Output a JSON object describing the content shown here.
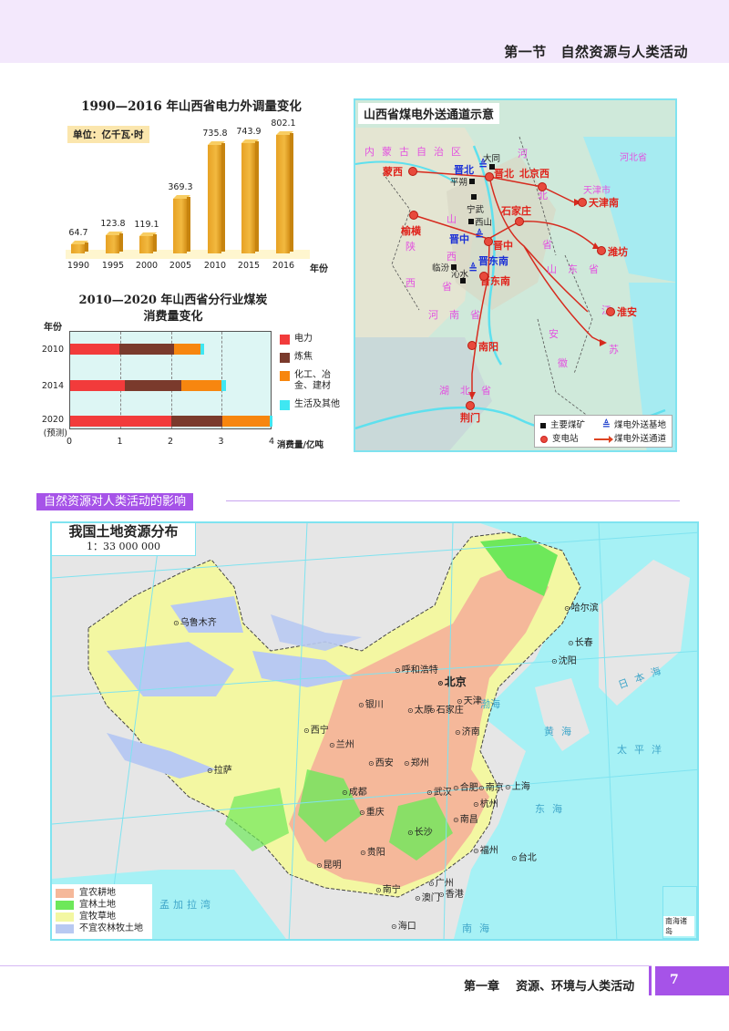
{
  "header": {
    "section_number": "第一节",
    "section_title": "自然资源与人类活动"
  },
  "chart_data": [
    {
      "type": "bar",
      "title": "1990—2016 年山西省电力外调量变化",
      "unit_label": "单位：亿千瓦·时",
      "xlabel": "年份",
      "ylabel": "",
      "categories": [
        "1990",
        "1995",
        "2000",
        "2005",
        "2010",
        "2015",
        "2016"
      ],
      "values": [
        64.7,
        123.8,
        119.1,
        369.3,
        735.8,
        743.9,
        802.1
      ],
      "value_labels": [
        "64.7",
        "123.8",
        "119.1",
        "369.3",
        "735.8",
        "743.9",
        "802.1"
      ],
      "ylim": [
        0,
        850
      ],
      "grid": false,
      "legend": null
    },
    {
      "type": "bar",
      "orientation": "horizontal-stacked",
      "title": "2010—2020 年山西省分行业煤炭消费量变化",
      "title_lines": [
        "2010—2020 年山西省分行业煤炭",
        "消费量变化"
      ],
      "ylabel": "年份",
      "xlabel": "消费量/亿吨",
      "categories": [
        "2010",
        "2014",
        "2020"
      ],
      "category_notes": [
        "",
        "",
        "(预测)"
      ],
      "xticks": [
        "0",
        "1",
        "2",
        "3",
        "4"
      ],
      "xlim": [
        0,
        4
      ],
      "grid": "vertical dashed at 1,2,3",
      "legend_position": "right",
      "series": [
        {
          "name": "电力",
          "color": "#f23b3b",
          "values": [
            0.97,
            1.08,
            2.0
          ]
        },
        {
          "name": "炼焦",
          "color": "#7a3a2c",
          "values": [
            1.09,
            1.12,
            1.0
          ]
        },
        {
          "name": "化工、冶金、建材",
          "color": "#f7860f",
          "values": [
            0.52,
            0.8,
            0.95
          ]
        },
        {
          "name": "生活及其他",
          "color": "#3fe7f2",
          "values": [
            0.07,
            0.08,
            0.05
          ]
        }
      ]
    }
  ],
  "map_shanxi": {
    "title": "山西省煤电外送通道示意",
    "regions": [
      "内蒙古自治区",
      "河北省",
      "山西省",
      "陕西省",
      "山东省",
      "河南省",
      "江苏省",
      "安徽省",
      "湖北省",
      "天津市",
      "渤海",
      "黄海"
    ],
    "stations": [
      "蒙西",
      "晋北",
      "北京西",
      "天津南",
      "石家庄",
      "榆横",
      "晋中",
      "潍坊",
      "晋东南",
      "南阳",
      "淮安",
      "荆门"
    ],
    "bases": [
      "晋北",
      "晋中",
      "晋东南"
    ],
    "mines": [
      "大同",
      "平朔",
      "宁武",
      "西山",
      "临汾",
      "沁水"
    ],
    "legend": {
      "mine": "主要煤矿",
      "base": "煤电外送基地",
      "station": "变电站",
      "channel": "煤电外送通道"
    }
  },
  "section_heading": "自然资源对人类活动的影响",
  "map_china": {
    "title": "我国土地资源分布",
    "scale": "1：33 000 000",
    "cities": [
      "乌鲁木齐",
      "哈尔滨",
      "长春",
      "沈阳",
      "呼和浩特",
      "北京",
      "天津",
      "银川",
      "太原",
      "石家庄",
      "济南",
      "西宁",
      "兰州",
      "西安",
      "郑州",
      "拉萨",
      "成都",
      "武汉",
      "合肥",
      "南京",
      "上海",
      "杭州",
      "重庆",
      "南昌",
      "长沙",
      "福州",
      "贵阳",
      "台北",
      "昆明",
      "广州",
      "南宁",
      "澳门",
      "香港",
      "海口"
    ],
    "seas": [
      "日本海",
      "渤海",
      "黄海",
      "东海",
      "太平洋",
      "南海",
      "孟加拉湾"
    ],
    "inset_label": "南海诸岛",
    "legend": [
      {
        "label": "宜农耕地",
        "color": "#f5b89a"
      },
      {
        "label": "宜林土地",
        "color": "#6ee85a"
      },
      {
        "label": "宜牧草地",
        "color": "#f3f7a2"
      },
      {
        "label": "不宜农林牧土地",
        "color": "#b8c9f2"
      }
    ]
  },
  "footer": {
    "chapter": "第一章",
    "chapter_title": "资源、环境与人类活动",
    "page_number": "7"
  }
}
